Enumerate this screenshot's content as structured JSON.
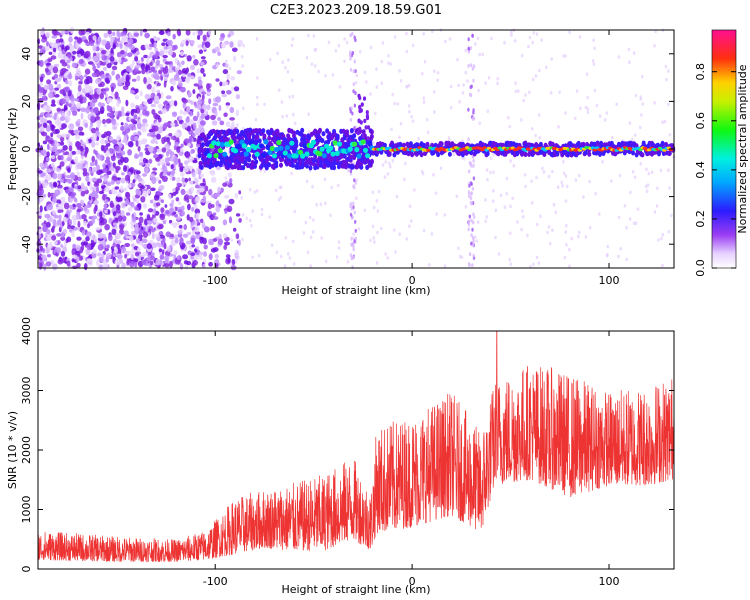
{
  "title": "C2E3.2023.209.18.59.G01",
  "chart_data": [
    {
      "type": "heatmap",
      "xlabel": "Height of straight line (km)",
      "ylabel": "Frequency (Hz)",
      "xlim": [
        -190,
        133
      ],
      "ylim": [
        -50,
        50
      ],
      "x_ticks": [
        -100,
        0,
        100
      ],
      "y_ticks": [
        -40,
        -20,
        0,
        20,
        40
      ],
      "colorbar": {
        "label": "Normalized spectral amplitude",
        "range": [
          0.0,
          0.97
        ],
        "ticks": [
          0.0,
          0.2,
          0.4,
          0.6,
          0.8
        ],
        "colormap": "rainbow (white-purple-blue-cyan-green-yellow-red-magenta)"
      },
      "features": {
        "noise_floor_region_km": [
          -190,
          -95
        ],
        "signal_track_start_km": -108,
        "signal_track_frequency_hz": 0,
        "strongest_amplitude_region_km": [
          -20,
          100
        ],
        "vertical_artifacts_km": [
          -30,
          30
        ]
      },
      "grid": false
    },
    {
      "type": "line",
      "color": "#ee3333",
      "xlabel": "Height of straight line (km)",
      "ylabel": "SNR (10 * v/v)",
      "xlim": [
        -190,
        133
      ],
      "ylim": [
        0,
        4000
      ],
      "x_ticks": [
        -100,
        0,
        100
      ],
      "y_ticks": [
        0,
        1000,
        2000,
        3000,
        4000
      ],
      "envelope": [
        {
          "x": -190,
          "base": 150,
          "hi": 650
        },
        {
          "x": -150,
          "base": 120,
          "hi": 550
        },
        {
          "x": -120,
          "base": 120,
          "hi": 500
        },
        {
          "x": -105,
          "base": 150,
          "hi": 650
        },
        {
          "x": -90,
          "base": 250,
          "hi": 1200
        },
        {
          "x": -75,
          "base": 350,
          "hi": 1350
        },
        {
          "x": -60,
          "base": 300,
          "hi": 1450
        },
        {
          "x": -45,
          "base": 300,
          "hi": 1600
        },
        {
          "x": -30,
          "base": 500,
          "hi": 1900
        },
        {
          "x": -21,
          "base": 300,
          "hi": 1300
        },
        {
          "x": -18,
          "base": 600,
          "hi": 2400
        },
        {
          "x": 0,
          "base": 700,
          "hi": 2600
        },
        {
          "x": 20,
          "base": 900,
          "hi": 3000
        },
        {
          "x": 35,
          "base": 600,
          "hi": 2300
        },
        {
          "x": 42,
          "base": 1400,
          "hi": 3200
        },
        {
          "x": 60,
          "base": 1500,
          "hi": 3500
        },
        {
          "x": 80,
          "base": 1200,
          "hi": 3300
        },
        {
          "x": 100,
          "base": 1400,
          "hi": 3000
        },
        {
          "x": 120,
          "base": 1400,
          "hi": 3100
        },
        {
          "x": 133,
          "base": 1500,
          "hi": 3300
        }
      ],
      "peak": {
        "x": 43,
        "y": 4000
      },
      "grid": false
    }
  ]
}
